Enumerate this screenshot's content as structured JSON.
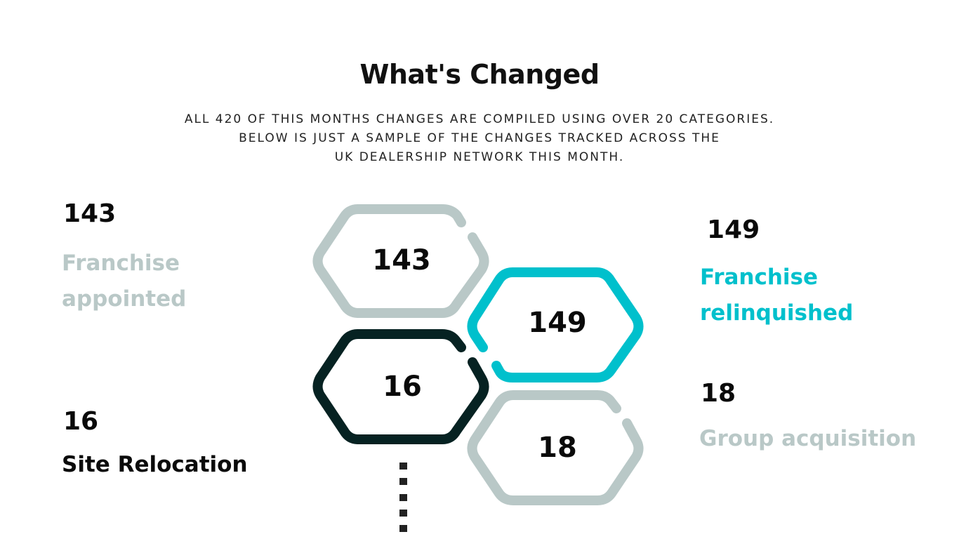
{
  "header": {
    "title": "What's Changed",
    "subtitle_lines": [
      "ALL 420 OF THIS MONTHS CHANGES ARE COMPILED USING OVER 20 CATEGORIES.",
      "BELOW IS JUST A SAMPLE OF THE CHANGES TRACKED ACROSS THE",
      "UK DEALERSHIP NETWORK THIS MONTH."
    ]
  },
  "stats": {
    "franchise_appointed": {
      "value": "143",
      "label_lines": [
        "Franchise",
        "appointed"
      ],
      "color": "#b9c8c7"
    },
    "franchise_relinquished": {
      "value": "149",
      "label_lines": [
        "Franchise",
        "relinquished"
      ],
      "color": "#00c0cc"
    },
    "site_relocation": {
      "value": "16",
      "label": "Site Relocation",
      "color": "#0a0a0a"
    },
    "group_acquisition": {
      "value": "18",
      "label": "Group acquisition",
      "color": "#b9c8c7"
    }
  },
  "hexagons": {
    "franchise_appointed": {
      "value": "143",
      "color": "#b9c8c7"
    },
    "franchise_relinquished": {
      "value": "149",
      "color": "#00c0cc"
    },
    "site_relocation": {
      "value": "16",
      "color": "#062222"
    },
    "group_acquisition": {
      "value": "18",
      "color": "#b9c8c7"
    }
  }
}
